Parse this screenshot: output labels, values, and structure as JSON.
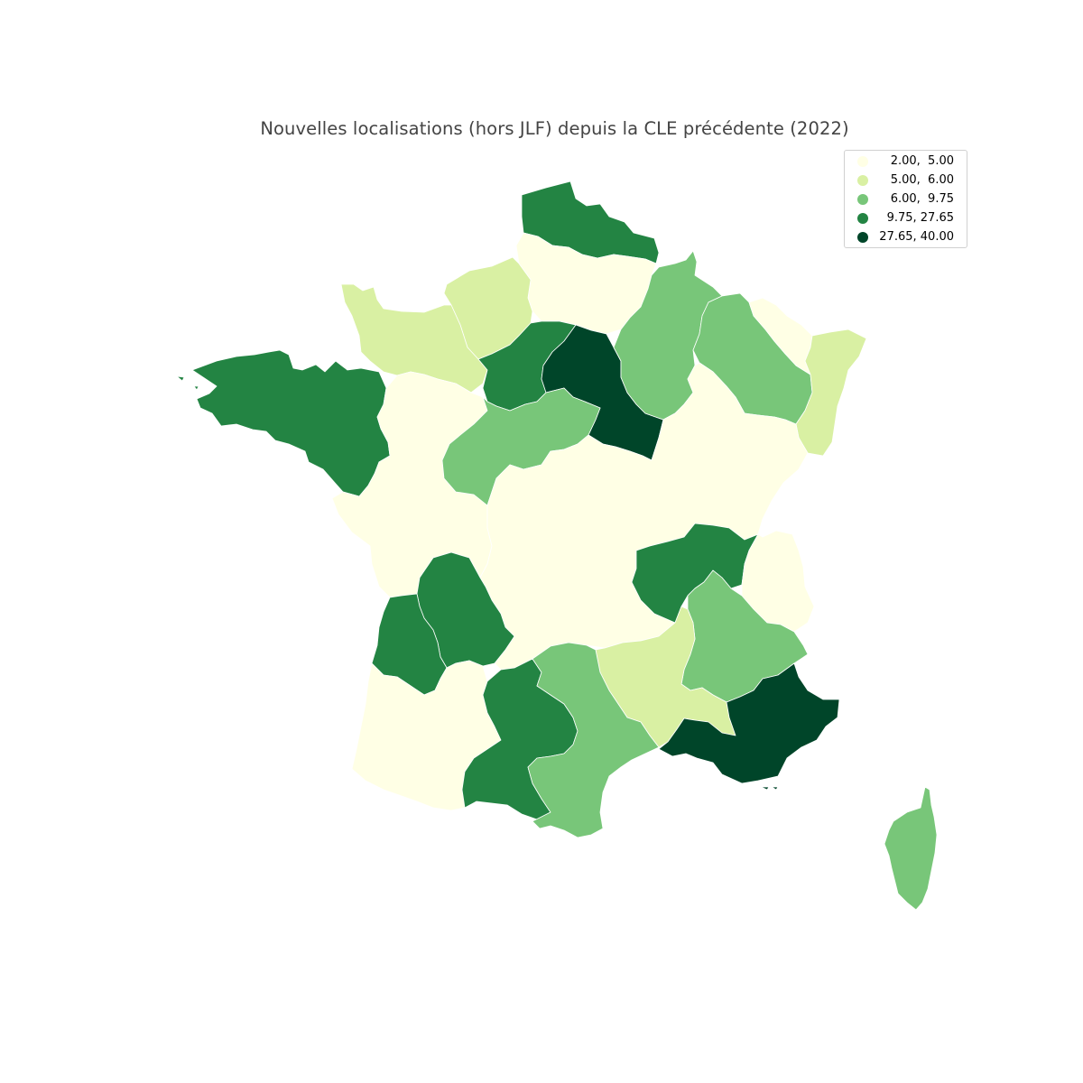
{
  "title": "Nouvelles localisations (hors JLF) depuis la CLE précédente (2022)",
  "colors": {
    "class_1": "#ffffe5",
    "class_2": "#d9f0a3",
    "class_3": "#78c679",
    "class_4": "#238443",
    "class_5": "#004529",
    "border": "#ffffff"
  },
  "legend": {
    "items": [
      {
        "label": "2.00,  5.00",
        "color": "#ffffe5"
      },
      {
        "label": "5.00,  6.00",
        "color": "#d9f0a3"
      },
      {
        "label": "6.00,  9.75",
        "color": "#78c679"
      },
      {
        "label": "9.75, 27.65",
        "color": "#238443"
      },
      {
        "label": "27.65, 40.00",
        "color": "#004529"
      }
    ]
  },
  "regions": [
    {
      "id": "nord",
      "class": 4
    },
    {
      "id": "aisne-oise-north",
      "class": 1
    },
    {
      "id": "somme",
      "class": 2
    },
    {
      "id": "normandie",
      "class": 2
    },
    {
      "id": "bretagne",
      "class": 4
    },
    {
      "id": "pays-de-la-loire-north",
      "class": 1
    },
    {
      "id": "ile-de-france-ouest",
      "class": 4
    },
    {
      "id": "paris-seine-et-marne",
      "class": 5
    },
    {
      "id": "marne",
      "class": 3
    },
    {
      "id": "lorraine",
      "class": 3
    },
    {
      "id": "moselle-nord",
      "class": 1
    },
    {
      "id": "alsace",
      "class": 2
    },
    {
      "id": "centre-loiret",
      "class": 3
    },
    {
      "id": "centre-ouest",
      "class": 1
    },
    {
      "id": "bourgogne-rhone",
      "class": 1
    },
    {
      "id": "rhone-alpes",
      "class": 4
    },
    {
      "id": "savoie",
      "class": 1
    },
    {
      "id": "limousin",
      "class": 4
    },
    {
      "id": "aquitaine-gironde",
      "class": 4
    },
    {
      "id": "landes-pyrenees",
      "class": 1
    },
    {
      "id": "alpes-haute",
      "class": 3
    },
    {
      "id": "vaucluse-drome",
      "class": 2
    },
    {
      "id": "paca-cote",
      "class": 5
    },
    {
      "id": "midi-pyrenees",
      "class": 4
    },
    {
      "id": "languedoc",
      "class": 3
    },
    {
      "id": "corse",
      "class": 3
    }
  ]
}
